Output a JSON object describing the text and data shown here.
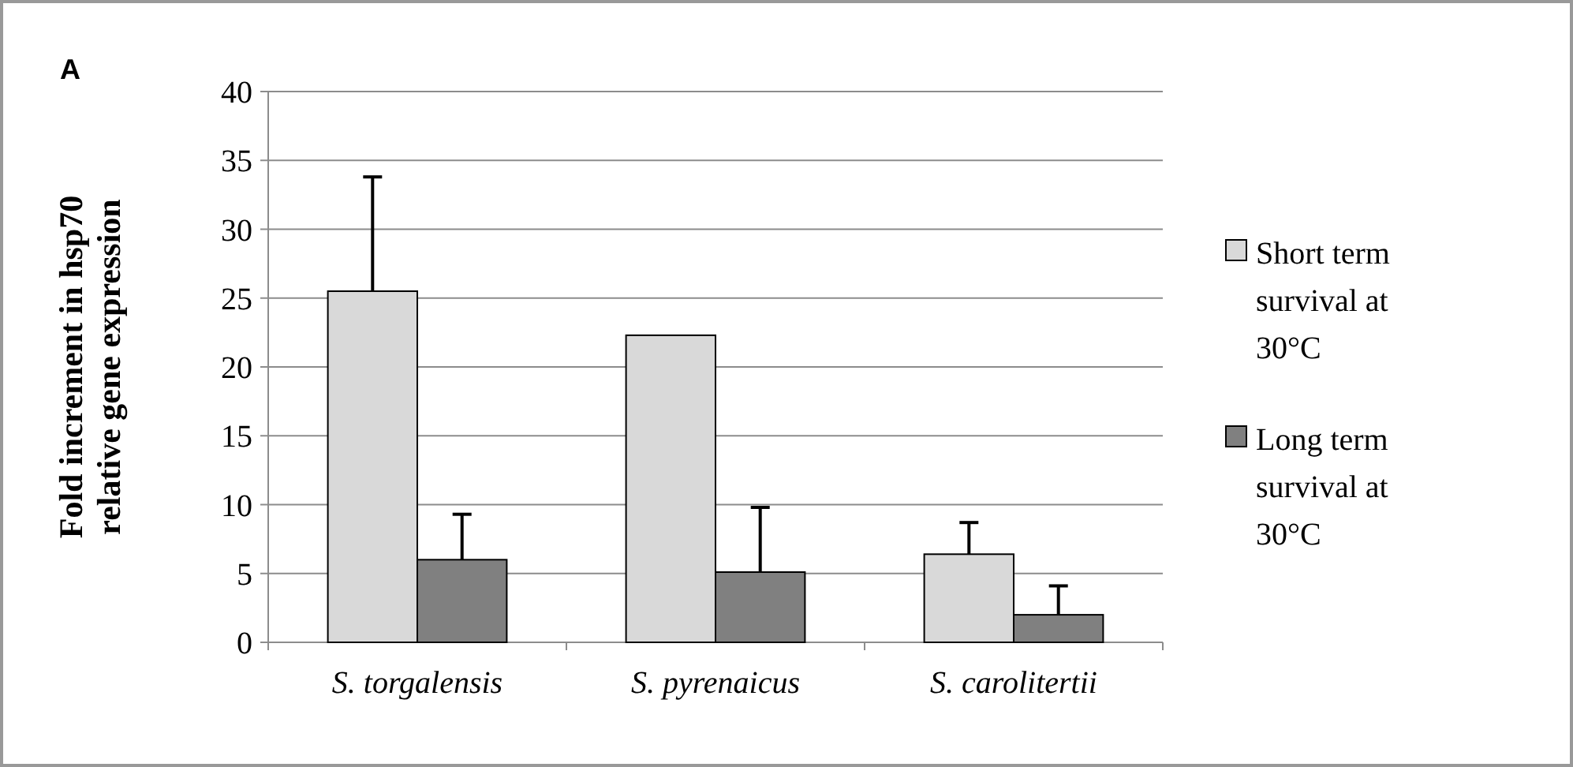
{
  "chart_data": {
    "type": "bar",
    "title": "A",
    "ylabel": "Fold increment in hsp70 relative gene expression",
    "categories": [
      "S. torgalensis",
      "S. pyrenaicus",
      "S. carolitertii"
    ],
    "series": [
      {
        "name": "Short term survival at 30°C",
        "color": "#d9d9d9",
        "values": [
          25.5,
          22.3,
          6.4
        ],
        "errors": [
          [
            25.5,
            33.8
          ],
          null,
          [
            6.4,
            8.7
          ]
        ]
      },
      {
        "name": "Long term survival at 30°C",
        "color": "#808080",
        "values": [
          6.0,
          5.1,
          2.0
        ],
        "errors": [
          [
            6.0,
            9.3
          ],
          [
            5.1,
            9.8
          ],
          [
            2.0,
            4.1
          ]
        ]
      }
    ],
    "ylim": [
      0,
      40
    ],
    "yticks": [
      0,
      5,
      10,
      15,
      20,
      25,
      30,
      35,
      40
    ],
    "grid": "y",
    "legend": "right"
  }
}
